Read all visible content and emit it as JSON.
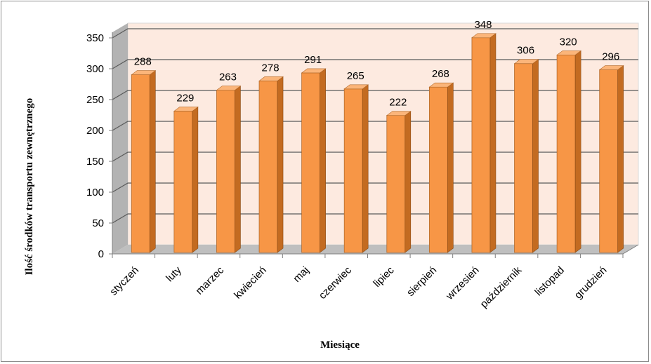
{
  "chart_data": {
    "type": "bar",
    "title": "",
    "xlabel": "Miesiące",
    "ylabel": "Ilość środków transportu zewnętrznego",
    "categories": [
      "styczeń",
      "luty",
      "marzec",
      "kwiecień",
      "maj",
      "czerwiec",
      "lipiec",
      "sierpień",
      "wrzesień",
      "październik",
      "listopad",
      "grudzień"
    ],
    "values": [
      288,
      229,
      263,
      278,
      291,
      265,
      222,
      268,
      348,
      306,
      320,
      296
    ],
    "ylim": [
      0,
      350
    ],
    "yticks": [
      0,
      50,
      100,
      150,
      200,
      250,
      300,
      350
    ],
    "grid": true,
    "three_d": true,
    "colors": {
      "bar_front": "#f79646",
      "bar_side": "#c36b21",
      "bar_top": "#fbb57a",
      "back_wall": "#fdeae0",
      "side_wall": "#b3b3b3",
      "floor": "#bfbfbf",
      "gridline": "#5a5a5a"
    }
  }
}
